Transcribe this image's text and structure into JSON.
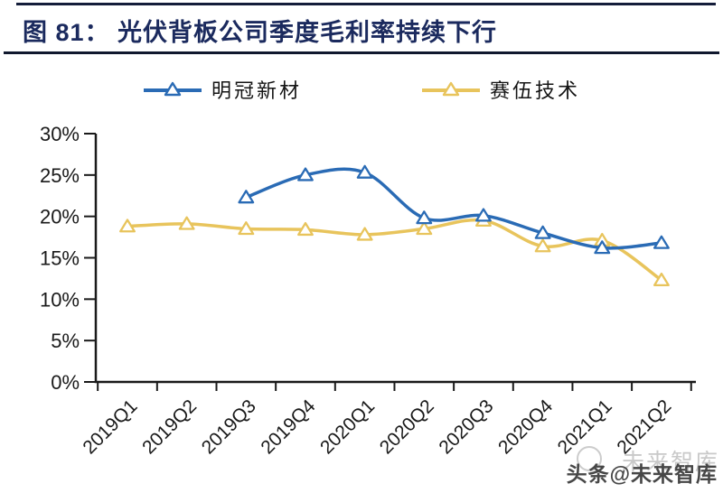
{
  "header": {
    "title": "图 81： 光伏背板公司季度毛利率持续下行"
  },
  "watermark": {
    "ghost_text": "未来智库",
    "main_text": "头条@未来智库"
  },
  "colors": {
    "title_navy": "#1b2a5e",
    "rule_dark": "#10182e",
    "axis_black": "#1a1a1a",
    "series_blue": "#2a6bb5",
    "series_yellow": "#e8c45c",
    "watermark_gray": "#474747",
    "watermark_ghost": "#c9c9c9"
  },
  "chart_data": {
    "type": "line",
    "title": "光伏背板公司季度毛利率持续下行",
    "categories": [
      "2019Q1",
      "2019Q2",
      "2019Q3",
      "2019Q4",
      "2020Q1",
      "2020Q2",
      "2020Q3",
      "2020Q4",
      "2021Q1",
      "2021Q2"
    ],
    "series": [
      {
        "name": "明冠新材",
        "color": "#2a6bb5",
        "values": [
          null,
          null,
          22.3,
          25.0,
          25.3,
          19.8,
          20.1,
          18.0,
          16.2,
          16.8
        ]
      },
      {
        "name": "赛伍技术",
        "color": "#e8c45c",
        "values": [
          18.8,
          19.1,
          18.5,
          18.4,
          17.8,
          18.5,
          19.5,
          16.4,
          17.1,
          12.3
        ]
      }
    ],
    "xlabel": "",
    "ylabel": "",
    "ylim": [
      0,
      30
    ],
    "ytick_step": 5,
    "ytick_labels": [
      "0%",
      "5%",
      "10%",
      "15%",
      "20%",
      "25%",
      "30%"
    ],
    "ytick_format": "percent",
    "grid": false,
    "legend_position": "top-center",
    "line_style": "smooth",
    "marker": "open-triangle"
  }
}
